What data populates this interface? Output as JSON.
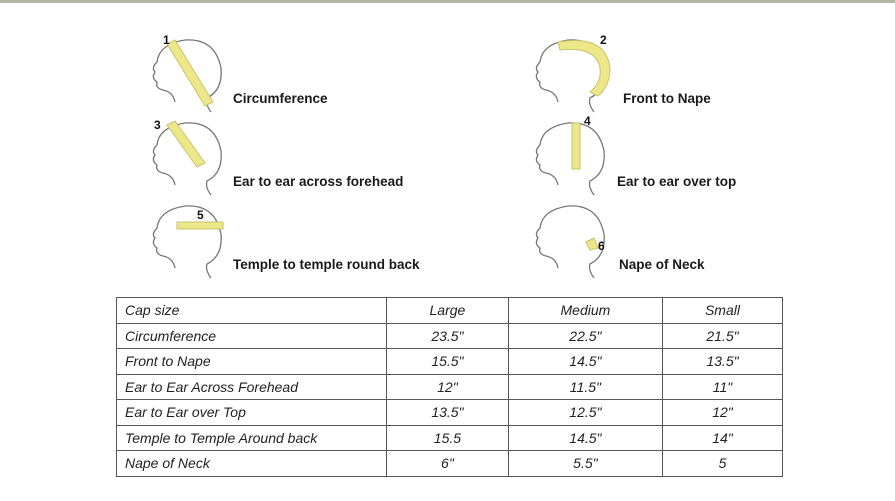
{
  "figures": [
    {
      "number": "1",
      "label": "Circumference"
    },
    {
      "number": "2",
      "label": "Front to Nape"
    },
    {
      "number": "3",
      "label": "Ear to ear across forehead"
    },
    {
      "number": "4",
      "label": "Ear to ear over top"
    },
    {
      "number": "5",
      "label": "Temple to temple round back"
    },
    {
      "number": "6",
      "label": "Nape of Neck"
    }
  ],
  "tape_color": "#ece88a",
  "table": {
    "headers": [
      "Cap size",
      "Large",
      "Medium",
      "Small"
    ],
    "rows": [
      [
        "Circumference",
        "23.5\"",
        "22.5\"",
        "21.5\""
      ],
      [
        "Front to Nape",
        "15.5\"",
        "14.5\"",
        "13.5\""
      ],
      [
        "Ear to Ear Across Forehead",
        "12\"",
        "11.5\"",
        "11\""
      ],
      [
        "Ear to Ear over Top",
        "13.5\"",
        "12.5\"",
        "12\""
      ],
      [
        "Temple to Temple Around back",
        "15.5",
        "14.5\"",
        "14\""
      ],
      [
        "Nape of Neck",
        "6\"",
        "5.5\"",
        "5"
      ]
    ]
  }
}
